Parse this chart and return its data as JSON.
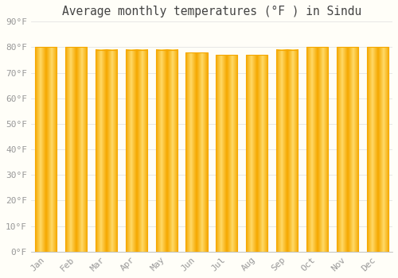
{
  "title": "Average monthly temperatures (°F ) in Sindu",
  "months": [
    "Jan",
    "Feb",
    "Mar",
    "Apr",
    "May",
    "Jun",
    "Jul",
    "Aug",
    "Sep",
    "Oct",
    "Nov",
    "Dec"
  ],
  "values": [
    80,
    80,
    79,
    79,
    79,
    78,
    77,
    77,
    79,
    80,
    80,
    80
  ],
  "bar_color_edge": "#F5A800",
  "bar_color_center": "#FFD966",
  "background_color": "#FFFEF8",
  "grid_color": "#DDDDDD",
  "ytick_labels": [
    "0°F",
    "10°F",
    "20°F",
    "30°F",
    "40°F",
    "50°F",
    "60°F",
    "70°F",
    "80°F",
    "90°F"
  ],
  "ytick_values": [
    0,
    10,
    20,
    30,
    40,
    50,
    60,
    70,
    80,
    90
  ],
  "ylim": [
    0,
    90
  ],
  "title_fontsize": 10.5,
  "tick_fontsize": 8,
  "title_color": "#444444",
  "tick_color": "#999999",
  "bar_width": 0.72
}
